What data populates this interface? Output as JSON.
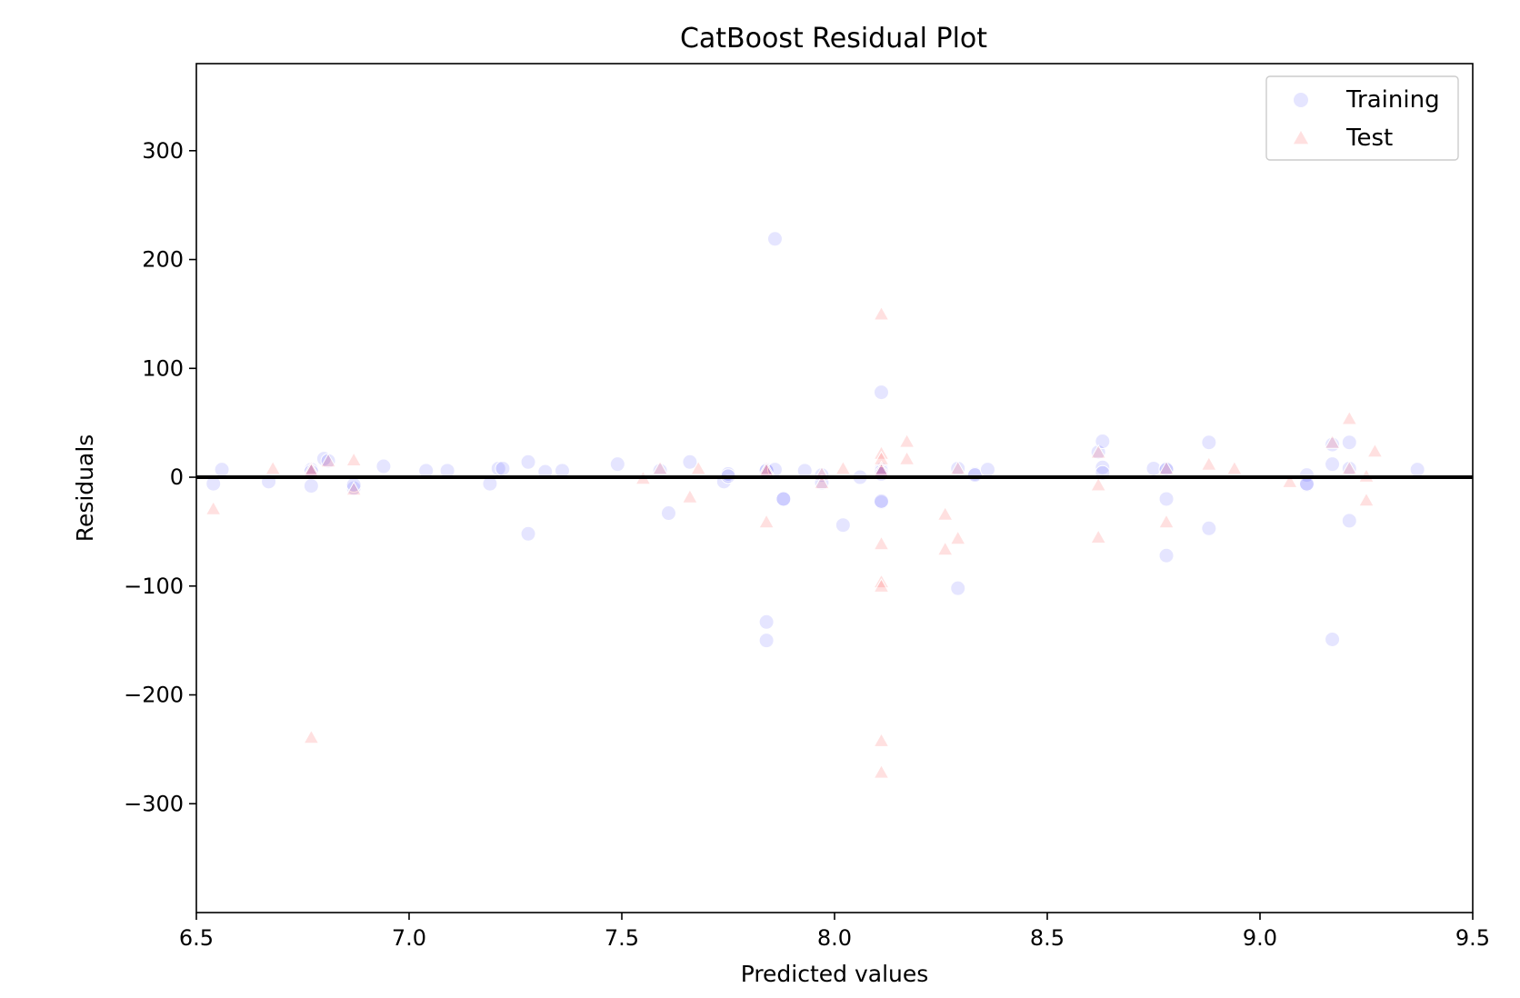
{
  "chart_data": {
    "type": "scatter",
    "title": "CatBoost Residual Plot",
    "xlabel": "Predicted values",
    "ylabel": "Residuals",
    "xlim": [
      6.5,
      9.5
    ],
    "ylim": [
      -400,
      380
    ],
    "xticks": [
      6.5,
      7.0,
      7.5,
      8.0,
      8.5,
      9.0,
      9.5
    ],
    "xtick_labels": [
      "6.5",
      "7.0",
      "7.5",
      "8.0",
      "8.5",
      "9.0",
      "9.5"
    ],
    "yticks": [
      -300,
      -200,
      -100,
      0,
      100,
      200,
      300
    ],
    "ytick_labels": [
      "−300",
      "−200",
      "−100",
      "0",
      "100",
      "200",
      "300"
    ],
    "grid": false,
    "legend_position": "top-right",
    "zero_line": 0,
    "series": [
      {
        "name": "Training",
        "marker": "circle",
        "color": "#0000ff",
        "opacity": 0.1,
        "points": [
          [
            6.54,
            -6
          ],
          [
            6.56,
            7
          ],
          [
            6.67,
            -4
          ],
          [
            6.77,
            7
          ],
          [
            6.77,
            5
          ],
          [
            6.77,
            -8
          ],
          [
            6.8,
            17
          ],
          [
            6.81,
            15
          ],
          [
            6.87,
            -10
          ],
          [
            6.87,
            -7
          ],
          [
            6.94,
            10
          ],
          [
            7.04,
            6
          ],
          [
            7.09,
            6
          ],
          [
            7.19,
            -6
          ],
          [
            7.21,
            8
          ],
          [
            7.22,
            8
          ],
          [
            7.28,
            14
          ],
          [
            7.28,
            -52
          ],
          [
            7.32,
            5
          ],
          [
            7.36,
            6
          ],
          [
            7.49,
            12
          ],
          [
            7.59,
            6
          ],
          [
            7.61,
            -33
          ],
          [
            7.66,
            14
          ],
          [
            7.74,
            -4
          ],
          [
            7.75,
            3
          ],
          [
            7.75,
            1
          ],
          [
            7.84,
            7
          ],
          [
            7.84,
            6
          ],
          [
            7.84,
            -133
          ],
          [
            7.84,
            -150
          ],
          [
            7.86,
            7
          ],
          [
            7.86,
            219
          ],
          [
            7.88,
            -20
          ],
          [
            7.88,
            -20
          ],
          [
            7.93,
            6
          ],
          [
            7.97,
            2
          ],
          [
            7.97,
            -5
          ],
          [
            8.02,
            -44
          ],
          [
            8.06,
            0
          ],
          [
            8.11,
            7
          ],
          [
            8.11,
            5
          ],
          [
            8.11,
            3
          ],
          [
            8.11,
            78
          ],
          [
            8.11,
            -23
          ],
          [
            8.11,
            -22
          ],
          [
            8.29,
            8
          ],
          [
            8.29,
            -102
          ],
          [
            8.33,
            3
          ],
          [
            8.33,
            2
          ],
          [
            8.36,
            7
          ],
          [
            8.62,
            23
          ],
          [
            8.63,
            33
          ],
          [
            8.63,
            9
          ],
          [
            8.63,
            4
          ],
          [
            8.75,
            8
          ],
          [
            8.78,
            8
          ],
          [
            8.78,
            7
          ],
          [
            8.78,
            -20
          ],
          [
            8.78,
            -72
          ],
          [
            8.88,
            32
          ],
          [
            8.88,
            -47
          ],
          [
            9.11,
            2
          ],
          [
            9.11,
            -7
          ],
          [
            9.11,
            -6
          ],
          [
            9.17,
            12
          ],
          [
            9.17,
            30
          ],
          [
            9.17,
            -149
          ],
          [
            9.21,
            8
          ],
          [
            9.21,
            32
          ],
          [
            9.21,
            -40
          ],
          [
            9.37,
            7
          ]
        ]
      },
      {
        "name": "Test",
        "marker": "triangle",
        "color": "#ff0000",
        "opacity": 0.12,
        "points": [
          [
            6.54,
            -30
          ],
          [
            6.68,
            7
          ],
          [
            6.77,
            7
          ],
          [
            6.77,
            5
          ],
          [
            6.77,
            -240
          ],
          [
            6.81,
            14
          ],
          [
            6.87,
            15
          ],
          [
            6.87,
            -12
          ],
          [
            7.55,
            -2
          ],
          [
            7.59,
            7
          ],
          [
            7.66,
            -19
          ],
          [
            7.68,
            7
          ],
          [
            7.84,
            7
          ],
          [
            7.84,
            5
          ],
          [
            7.84,
            -42
          ],
          [
            7.97,
            2
          ],
          [
            7.97,
            -6
          ],
          [
            8.02,
            7
          ],
          [
            8.11,
            149
          ],
          [
            8.11,
            21
          ],
          [
            8.11,
            16
          ],
          [
            8.11,
            7
          ],
          [
            8.11,
            5
          ],
          [
            8.11,
            -62
          ],
          [
            8.11,
            -97
          ],
          [
            8.11,
            -101
          ],
          [
            8.11,
            -243
          ],
          [
            8.11,
            -272
          ],
          [
            8.17,
            32
          ],
          [
            8.17,
            16
          ],
          [
            8.26,
            -35
          ],
          [
            8.26,
            -67
          ],
          [
            8.29,
            7
          ],
          [
            8.29,
            -57
          ],
          [
            8.62,
            22
          ],
          [
            8.62,
            -8
          ],
          [
            8.62,
            -56
          ],
          [
            8.78,
            7
          ],
          [
            8.78,
            -42
          ],
          [
            8.88,
            11
          ],
          [
            8.94,
            7
          ],
          [
            9.07,
            -5
          ],
          [
            9.17,
            31
          ],
          [
            9.21,
            53
          ],
          [
            9.21,
            7
          ],
          [
            9.25,
            0
          ],
          [
            9.25,
            -22
          ],
          [
            9.27,
            23
          ]
        ]
      }
    ]
  }
}
